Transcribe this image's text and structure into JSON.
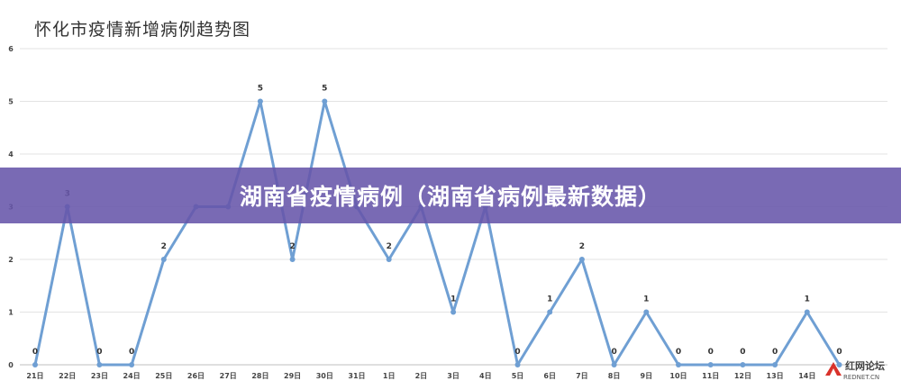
{
  "chart_data": {
    "type": "line",
    "title": "怀化市疫情新增病例趋势图",
    "xlabel": "",
    "ylabel": "",
    "ylim": [
      0,
      6
    ],
    "yticks": [
      "0",
      "1",
      "2",
      "3",
      "4",
      "5",
      "6"
    ],
    "grid": true,
    "categories": [
      "21日",
      "22日",
      "23日",
      "24日",
      "25日",
      "26日",
      "27日",
      "28日",
      "29日",
      "30日",
      "31日",
      "1日",
      "2日",
      "3日",
      "4日",
      "5日",
      "6日",
      "7日",
      "8日",
      "9日",
      "10日",
      "11日",
      "12日",
      "13日",
      "14日",
      ""
    ],
    "values": [
      0,
      3,
      0,
      0,
      2,
      3,
      3,
      5,
      2,
      5,
      3,
      2,
      3,
      1,
      3,
      0,
      1,
      2,
      0,
      1,
      0,
      0,
      0,
      0,
      1,
      0
    ],
    "data_labels": [
      "0",
      "3",
      "0",
      "0",
      "2",
      "",
      "",
      "5",
      "2",
      "5",
      "",
      "2",
      "",
      "1",
      "",
      "0",
      "1",
      "2",
      "0",
      "1",
      "0",
      "0",
      "0",
      "0",
      "1",
      "0"
    ],
    "line_color": "#6f9fd3"
  },
  "banner": {
    "text": "湖南省疫情病例（湖南省病例最新数据）",
    "color": "#6755aa"
  },
  "watermark": {
    "name": "红网论坛",
    "site": "REDNET.CN"
  }
}
